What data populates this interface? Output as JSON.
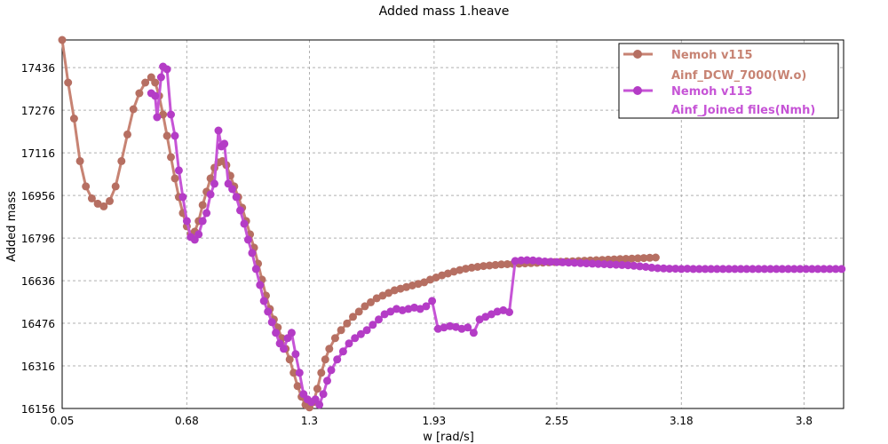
{
  "chart_data": {
    "type": "line",
    "title": "Added mass 1.heave",
    "xlabel": "w [rad/s]",
    "ylabel": "Added mass",
    "xlim": [
      0.05,
      4.0
    ],
    "ylim": [
      16156,
      17540
    ],
    "xticks": [
      "0.05",
      "0.68",
      "1.3",
      "1.93",
      "2.55",
      "3.18",
      "3.8"
    ],
    "yticks": [
      "16156",
      "16316",
      "16476",
      "16636",
      "16796",
      "16956",
      "17116",
      "17276",
      "17436"
    ],
    "grid": true,
    "legend_position": "top-right",
    "series": [
      {
        "name": "Nemoh v115",
        "subtitle": "Ainf_DCW_7000(W.o)",
        "color": "#b66f62",
        "points": [
          [
            0.05,
            17540
          ],
          [
            0.08,
            17380
          ],
          [
            0.11,
            17245
          ],
          [
            0.14,
            17085
          ],
          [
            0.17,
            16990
          ],
          [
            0.2,
            16945
          ],
          [
            0.23,
            16925
          ],
          [
            0.26,
            16915
          ],
          [
            0.29,
            16935
          ],
          [
            0.32,
            16990
          ],
          [
            0.35,
            17085
          ],
          [
            0.38,
            17185
          ],
          [
            0.41,
            17280
          ],
          [
            0.44,
            17340
          ],
          [
            0.47,
            17380
          ],
          [
            0.5,
            17400
          ],
          [
            0.52,
            17380
          ],
          [
            0.54,
            17330
          ],
          [
            0.56,
            17260
          ],
          [
            0.58,
            17180
          ],
          [
            0.6,
            17100
          ],
          [
            0.62,
            17020
          ],
          [
            0.64,
            16950
          ],
          [
            0.66,
            16890
          ],
          [
            0.68,
            16840
          ],
          [
            0.7,
            16810
          ],
          [
            0.72,
            16820
          ],
          [
            0.74,
            16860
          ],
          [
            0.76,
            16920
          ],
          [
            0.78,
            16970
          ],
          [
            0.8,
            17020
          ],
          [
            0.82,
            17060
          ],
          [
            0.84,
            17080
          ],
          [
            0.86,
            17085
          ],
          [
            0.88,
            17070
          ],
          [
            0.9,
            17030
          ],
          [
            0.92,
            16990
          ],
          [
            0.94,
            16950
          ],
          [
            0.96,
            16910
          ],
          [
            0.98,
            16860
          ],
          [
            1.0,
            16810
          ],
          [
            1.02,
            16760
          ],
          [
            1.04,
            16700
          ],
          [
            1.06,
            16640
          ],
          [
            1.08,
            16580
          ],
          [
            1.1,
            16530
          ],
          [
            1.12,
            16490
          ],
          [
            1.14,
            16460
          ],
          [
            1.16,
            16420
          ],
          [
            1.18,
            16380
          ],
          [
            1.2,
            16340
          ],
          [
            1.22,
            16290
          ],
          [
            1.24,
            16240
          ],
          [
            1.26,
            16200
          ],
          [
            1.28,
            16170
          ],
          [
            1.3,
            16160
          ],
          [
            1.32,
            16180
          ],
          [
            1.34,
            16230
          ],
          [
            1.36,
            16290
          ],
          [
            1.38,
            16340
          ],
          [
            1.4,
            16380
          ],
          [
            1.43,
            16420
          ],
          [
            1.46,
            16450
          ],
          [
            1.49,
            16475
          ],
          [
            1.52,
            16500
          ],
          [
            1.55,
            16520
          ],
          [
            1.58,
            16540
          ],
          [
            1.61,
            16555
          ],
          [
            1.64,
            16570
          ],
          [
            1.67,
            16580
          ],
          [
            1.7,
            16590
          ],
          [
            1.73,
            16600
          ],
          [
            1.76,
            16606
          ],
          [
            1.79,
            16612
          ],
          [
            1.82,
            16618
          ],
          [
            1.85,
            16624
          ],
          [
            1.88,
            16630
          ],
          [
            1.91,
            16640
          ],
          [
            1.94,
            16648
          ],
          [
            1.97,
            16656
          ],
          [
            2.0,
            16663
          ],
          [
            2.03,
            16670
          ],
          [
            2.06,
            16676
          ],
          [
            2.09,
            16681
          ],
          [
            2.12,
            16685
          ],
          [
            2.15,
            16688
          ],
          [
            2.18,
            16691
          ],
          [
            2.21,
            16693
          ],
          [
            2.24,
            16695
          ],
          [
            2.27,
            16697
          ],
          [
            2.3,
            16698
          ],
          [
            2.33,
            16699
          ],
          [
            2.36,
            16700
          ],
          [
            2.39,
            16701
          ],
          [
            2.42,
            16702
          ],
          [
            2.45,
            16703
          ],
          [
            2.48,
            16704
          ],
          [
            2.51,
            16705
          ],
          [
            2.54,
            16706
          ],
          [
            2.57,
            16707
          ],
          [
            2.6,
            16708
          ],
          [
            2.63,
            16709
          ],
          [
            2.66,
            16710
          ],
          [
            2.69,
            16711
          ],
          [
            2.72,
            16712
          ],
          [
            2.75,
            16713
          ],
          [
            2.78,
            16714
          ],
          [
            2.81,
            16715
          ],
          [
            2.84,
            16716
          ],
          [
            2.87,
            16717
          ],
          [
            2.9,
            16718
          ],
          [
            2.93,
            16719
          ],
          [
            2.96,
            16720
          ],
          [
            2.99,
            16721
          ],
          [
            3.02,
            16722
          ],
          [
            3.05,
            16723
          ]
        ]
      },
      {
        "name": "Nemoh v113",
        "subtitle": "Ainf_Joined files(Nmh)",
        "color": "#b43cc6",
        "points": [
          [
            0.5,
            17340
          ],
          [
            0.52,
            17330
          ],
          [
            0.53,
            17250
          ],
          [
            0.55,
            17400
          ],
          [
            0.56,
            17440
          ],
          [
            0.58,
            17430
          ],
          [
            0.6,
            17260
          ],
          [
            0.62,
            17180
          ],
          [
            0.64,
            17050
          ],
          [
            0.66,
            16950
          ],
          [
            0.68,
            16860
          ],
          [
            0.7,
            16800
          ],
          [
            0.72,
            16790
          ],
          [
            0.74,
            16810
          ],
          [
            0.76,
            16860
          ],
          [
            0.78,
            16890
          ],
          [
            0.8,
            16960
          ],
          [
            0.82,
            17000
          ],
          [
            0.84,
            17200
          ],
          [
            0.855,
            17140
          ],
          [
            0.87,
            17150
          ],
          [
            0.89,
            17000
          ],
          [
            0.91,
            16980
          ],
          [
            0.93,
            16950
          ],
          [
            0.95,
            16900
          ],
          [
            0.97,
            16850
          ],
          [
            0.99,
            16790
          ],
          [
            1.01,
            16740
          ],
          [
            1.03,
            16680
          ],
          [
            1.05,
            16620
          ],
          [
            1.07,
            16560
          ],
          [
            1.09,
            16520
          ],
          [
            1.11,
            16480
          ],
          [
            1.13,
            16440
          ],
          [
            1.15,
            16400
          ],
          [
            1.17,
            16380
          ],
          [
            1.19,
            16420
          ],
          [
            1.21,
            16440
          ],
          [
            1.23,
            16360
          ],
          [
            1.25,
            16290
          ],
          [
            1.27,
            16210
          ],
          [
            1.29,
            16190
          ],
          [
            1.31,
            16180
          ],
          [
            1.33,
            16190
          ],
          [
            1.35,
            16170
          ],
          [
            1.37,
            16210
          ],
          [
            1.39,
            16260
          ],
          [
            1.41,
            16300
          ],
          [
            1.44,
            16340
          ],
          [
            1.47,
            16370
          ],
          [
            1.5,
            16400
          ],
          [
            1.53,
            16420
          ],
          [
            1.56,
            16435
          ],
          [
            1.59,
            16450
          ],
          [
            1.62,
            16470
          ],
          [
            1.65,
            16490
          ],
          [
            1.68,
            16510
          ],
          [
            1.71,
            16520
          ],
          [
            1.74,
            16530
          ],
          [
            1.77,
            16525
          ],
          [
            1.8,
            16530
          ],
          [
            1.83,
            16535
          ],
          [
            1.86,
            16530
          ],
          [
            1.89,
            16540
          ],
          [
            1.92,
            16560
          ],
          [
            1.95,
            16455
          ],
          [
            1.98,
            16460
          ],
          [
            2.01,
            16465
          ],
          [
            2.04,
            16462
          ],
          [
            2.07,
            16455
          ],
          [
            2.1,
            16460
          ],
          [
            2.13,
            16440
          ],
          [
            2.16,
            16490
          ],
          [
            2.19,
            16500
          ],
          [
            2.22,
            16510
          ],
          [
            2.25,
            16520
          ],
          [
            2.28,
            16525
          ],
          [
            2.31,
            16518
          ],
          [
            2.34,
            16710
          ],
          [
            2.37,
            16712
          ],
          [
            2.4,
            16713
          ],
          [
            2.43,
            16712
          ],
          [
            2.46,
            16710
          ],
          [
            2.49,
            16708
          ],
          [
            2.52,
            16707
          ],
          [
            2.55,
            16706
          ],
          [
            2.58,
            16705
          ],
          [
            2.61,
            16704
          ],
          [
            2.64,
            16703
          ],
          [
            2.67,
            16702
          ],
          [
            2.7,
            16701
          ],
          [
            2.73,
            16700
          ],
          [
            2.76,
            16699
          ],
          [
            2.79,
            16698
          ],
          [
            2.82,
            16697
          ],
          [
            2.85,
            16696
          ],
          [
            2.88,
            16695
          ],
          [
            2.91,
            16694
          ],
          [
            2.94,
            16692
          ],
          [
            2.97,
            16690
          ],
          [
            3.0,
            16688
          ],
          [
            3.03,
            16685
          ],
          [
            3.06,
            16683
          ],
          [
            3.09,
            16682
          ],
          [
            3.12,
            16681
          ],
          [
            3.15,
            16681
          ],
          [
            3.18,
            16680
          ],
          [
            3.21,
            16681
          ],
          [
            3.24,
            16680
          ],
          [
            3.27,
            16680
          ],
          [
            3.3,
            16680
          ],
          [
            3.33,
            16680
          ],
          [
            3.36,
            16680
          ],
          [
            3.39,
            16680
          ],
          [
            3.42,
            16680
          ],
          [
            3.45,
            16680
          ],
          [
            3.48,
            16680
          ],
          [
            3.51,
            16680
          ],
          [
            3.54,
            16680
          ],
          [
            3.57,
            16680
          ],
          [
            3.6,
            16680
          ],
          [
            3.63,
            16680
          ],
          [
            3.66,
            16680
          ],
          [
            3.69,
            16680
          ],
          [
            3.72,
            16680
          ],
          [
            3.75,
            16680
          ],
          [
            3.78,
            16680
          ],
          [
            3.81,
            16680
          ],
          [
            3.84,
            16680
          ],
          [
            3.87,
            16680
          ],
          [
            3.9,
            16680
          ],
          [
            3.93,
            16680
          ],
          [
            3.96,
            16680
          ],
          [
            3.99,
            16680
          ]
        ]
      }
    ]
  }
}
